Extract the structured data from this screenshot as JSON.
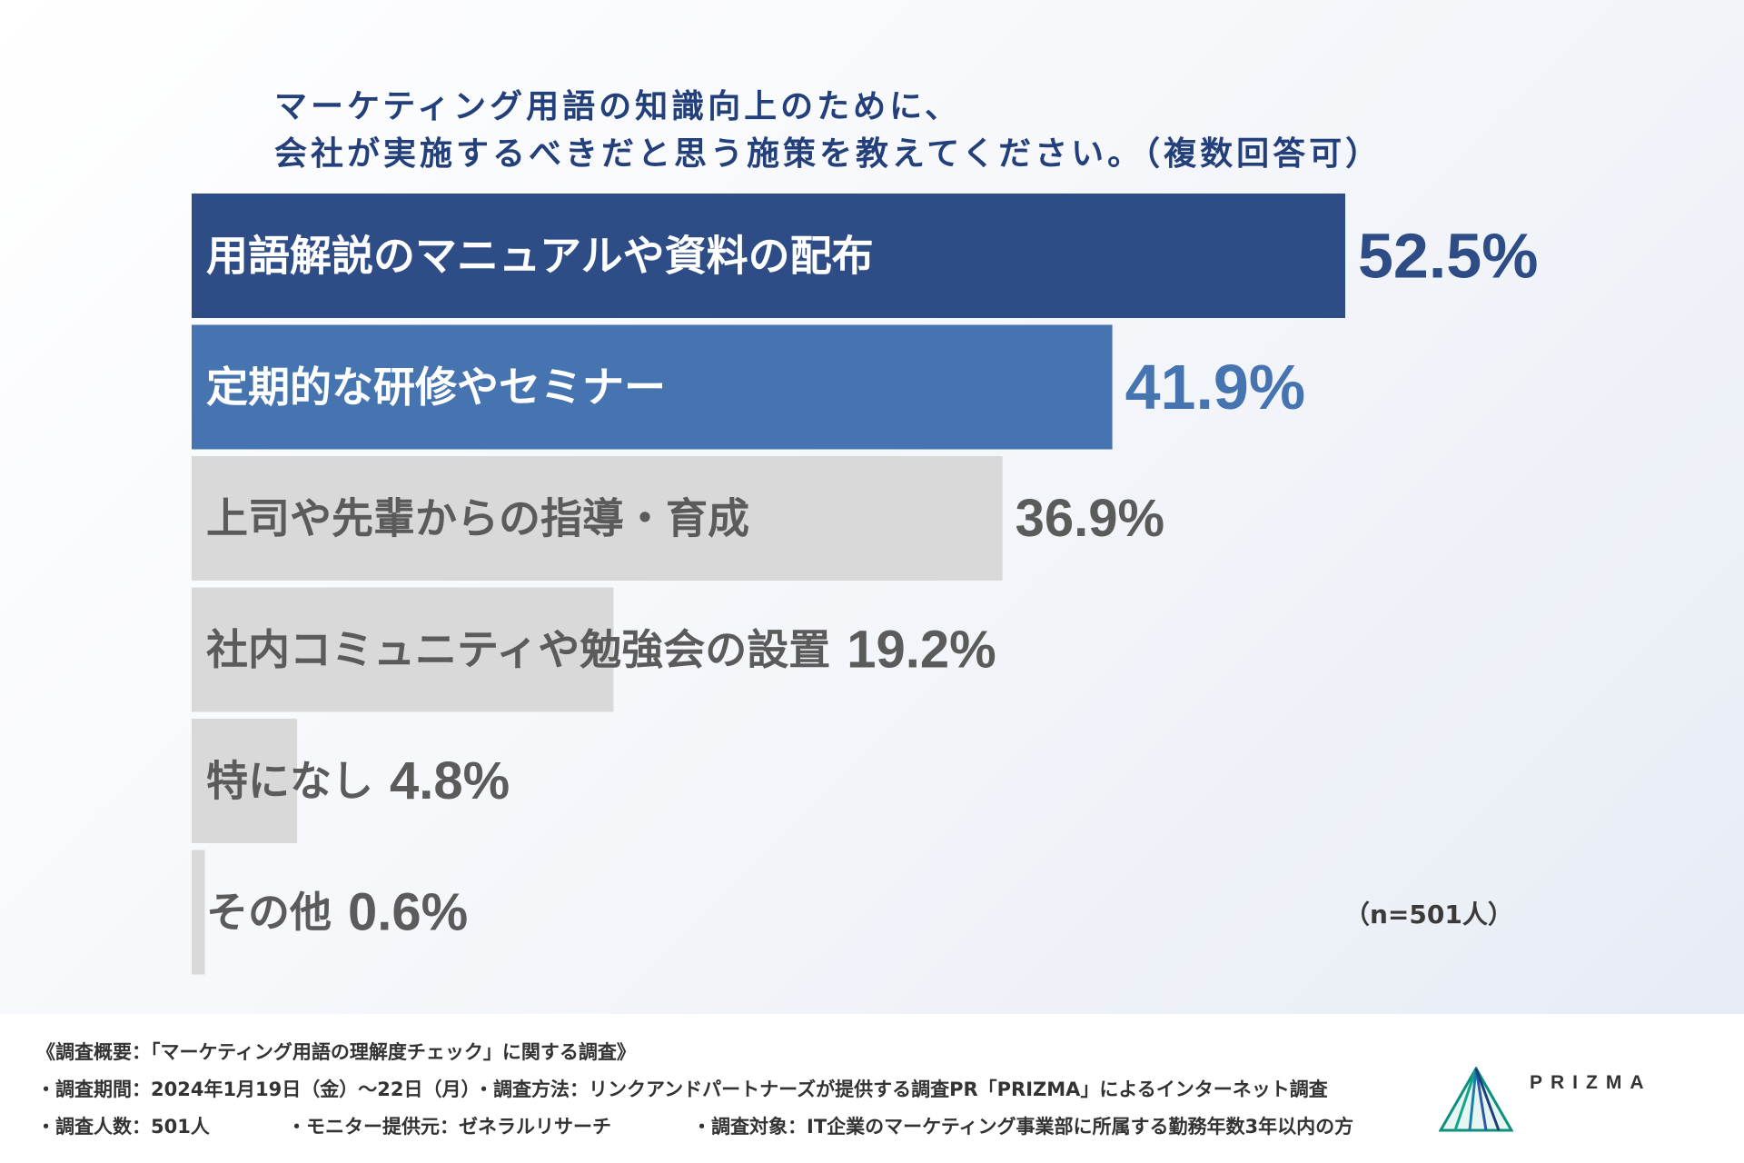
{
  "title": {
    "line1": "マーケティング用語の知識向上のために、",
    "line2": "会社が実施するべきだと思う施策を教えてください。（複数回答可）"
  },
  "chart_data": {
    "type": "bar",
    "orientation": "horizontal",
    "categories": [
      "用語解説のマニュアルや資料の配布",
      "定期的な研修やセミナー",
      "上司や先輩からの指導・育成",
      "社内コミュニティや勉強会の設置",
      "特になし",
      "その他"
    ],
    "values": [
      52.5,
      41.9,
      36.9,
      19.2,
      4.8,
      0.6
    ],
    "value_labels": [
      "52.5%",
      "41.9%",
      "36.9%",
      "19.2%",
      "4.8%",
      "0.6%"
    ],
    "unit": "%",
    "xlim": [
      0,
      52.5
    ],
    "bar_colors": [
      "#2e4c86",
      "#4574b0",
      "#d9d9d9",
      "#d9d9d9",
      "#d9d9d9",
      "#d9d9d9"
    ],
    "label_colors": [
      "#ffffff",
      "#ffffff",
      "#5b5b5b",
      "#5b5b5b",
      "#5b5b5b",
      "#5b5b5b"
    ],
    "value_colors": [
      "#2e4c86",
      "#4574b0",
      "#5b5b5b",
      "#5b5b5b",
      "#5b5b5b",
      "#5b5b5b"
    ],
    "sample_size": "（n=501人）"
  },
  "footer": {
    "title": "《調査概要：「マーケティング用語の理解度チェック」に関する調査》",
    "period": "・調査期間：2024年1月19日（金）～22日（月）",
    "method": "・調査方法：リンクアンドパートナーズが提供する調査PR「PRIZMA」によるインターネット調査",
    "respondents": "・調査人数：501人",
    "monitor": "・モニター提供元：ゼネラルリサーチ",
    "target": "・調査対象：IT企業のマーケティング事業部に所属する勤務年数3年以内の方"
  },
  "logo": {
    "text": "PRIZMA",
    "icon": "prizma-prism-icon"
  }
}
